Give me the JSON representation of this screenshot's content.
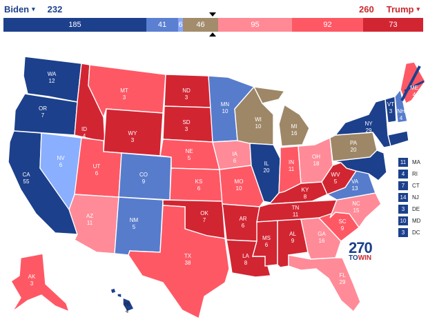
{
  "header": {
    "biden": {
      "name": "Biden",
      "total": "232",
      "caret": "▾"
    },
    "trump": {
      "name": "Trump",
      "total": "260",
      "caret": "▾"
    }
  },
  "tally_bar": [
    {
      "value": "185",
      "color": "#1c408c",
      "label": ""
    },
    {
      "value": "41",
      "color": "#5b7fd1",
      "label": ""
    },
    {
      "value": "6",
      "color": "#86a7fa",
      "label": ""
    },
    {
      "value": "46",
      "color": "#a38c6c",
      "label": ""
    },
    {
      "value": "95",
      "color": "#ff8a95",
      "label": ""
    },
    {
      "value": "92",
      "color": "#ff5865",
      "label": ""
    },
    {
      "value": "73",
      "color": "#d22532",
      "label": ""
    }
  ],
  "colors": {
    "safe_d": "#1c408c",
    "likely_d": "#577ccc",
    "lean_d": "#8aafff",
    "tossup": "#9e8767",
    "lean_r": "#ff8b98",
    "likely_r": "#ff5865",
    "safe_r": "#d22532"
  },
  "states": [
    {
      "abbr": "WA",
      "ev": "12"
    },
    {
      "abbr": "OR",
      "ev": "7"
    },
    {
      "abbr": "CA",
      "ev": "55"
    },
    {
      "abbr": "NV",
      "ev": "6"
    },
    {
      "abbr": "ID",
      "ev": "4"
    },
    {
      "abbr": "MT",
      "ev": "3"
    },
    {
      "abbr": "WY",
      "ev": "3"
    },
    {
      "abbr": "UT",
      "ev": "6"
    },
    {
      "abbr": "AZ",
      "ev": "11"
    },
    {
      "abbr": "CO",
      "ev": "9"
    },
    {
      "abbr": "NM",
      "ev": "5"
    },
    {
      "abbr": "ND",
      "ev": "3"
    },
    {
      "abbr": "SD",
      "ev": "3"
    },
    {
      "abbr": "NE",
      "ev": "5"
    },
    {
      "abbr": "KS",
      "ev": "6"
    },
    {
      "abbr": "OK",
      "ev": "7"
    },
    {
      "abbr": "TX",
      "ev": "38"
    },
    {
      "abbr": "MN",
      "ev": "10"
    },
    {
      "abbr": "IA",
      "ev": "6"
    },
    {
      "abbr": "MO",
      "ev": "10"
    },
    {
      "abbr": "AR",
      "ev": "6"
    },
    {
      "abbr": "LA",
      "ev": "8"
    },
    {
      "abbr": "WI",
      "ev": "10"
    },
    {
      "abbr": "IL",
      "ev": "20"
    },
    {
      "abbr": "MI",
      "ev": "16"
    },
    {
      "abbr": "IN",
      "ev": "11"
    },
    {
      "abbr": "OH",
      "ev": "18"
    },
    {
      "abbr": "KY",
      "ev": "8"
    },
    {
      "abbr": "TN",
      "ev": "11"
    },
    {
      "abbr": "MS",
      "ev": "6"
    },
    {
      "abbr": "AL",
      "ev": "9"
    },
    {
      "abbr": "GA",
      "ev": "16"
    },
    {
      "abbr": "FL",
      "ev": "29"
    },
    {
      "abbr": "SC",
      "ev": "9"
    },
    {
      "abbr": "NC",
      "ev": "15"
    },
    {
      "abbr": "VA",
      "ev": "13"
    },
    {
      "abbr": "WV",
      "ev": "5"
    },
    {
      "abbr": "PA",
      "ev": "20"
    },
    {
      "abbr": "NY",
      "ev": "29"
    },
    {
      "abbr": "VT",
      "ev": "3"
    },
    {
      "abbr": "NH",
      "ev": "4"
    },
    {
      "abbr": "ME",
      "ev": "4"
    },
    {
      "abbr": "AK",
      "ev": "3"
    },
    {
      "abbr": "HI",
      "ev": "4"
    }
  ],
  "northeast_list": [
    {
      "ev": "11",
      "abbr": "MA"
    },
    {
      "ev": "4",
      "abbr": "RI"
    },
    {
      "ev": "7",
      "abbr": "CT"
    },
    {
      "ev": "14",
      "abbr": "NJ"
    },
    {
      "ev": "3",
      "abbr": "DE"
    },
    {
      "ev": "10",
      "abbr": "MD"
    },
    {
      "ev": "3",
      "abbr": "DC"
    }
  ],
  "logo": {
    "number": "270",
    "to": "TO",
    "win": "WIN"
  }
}
